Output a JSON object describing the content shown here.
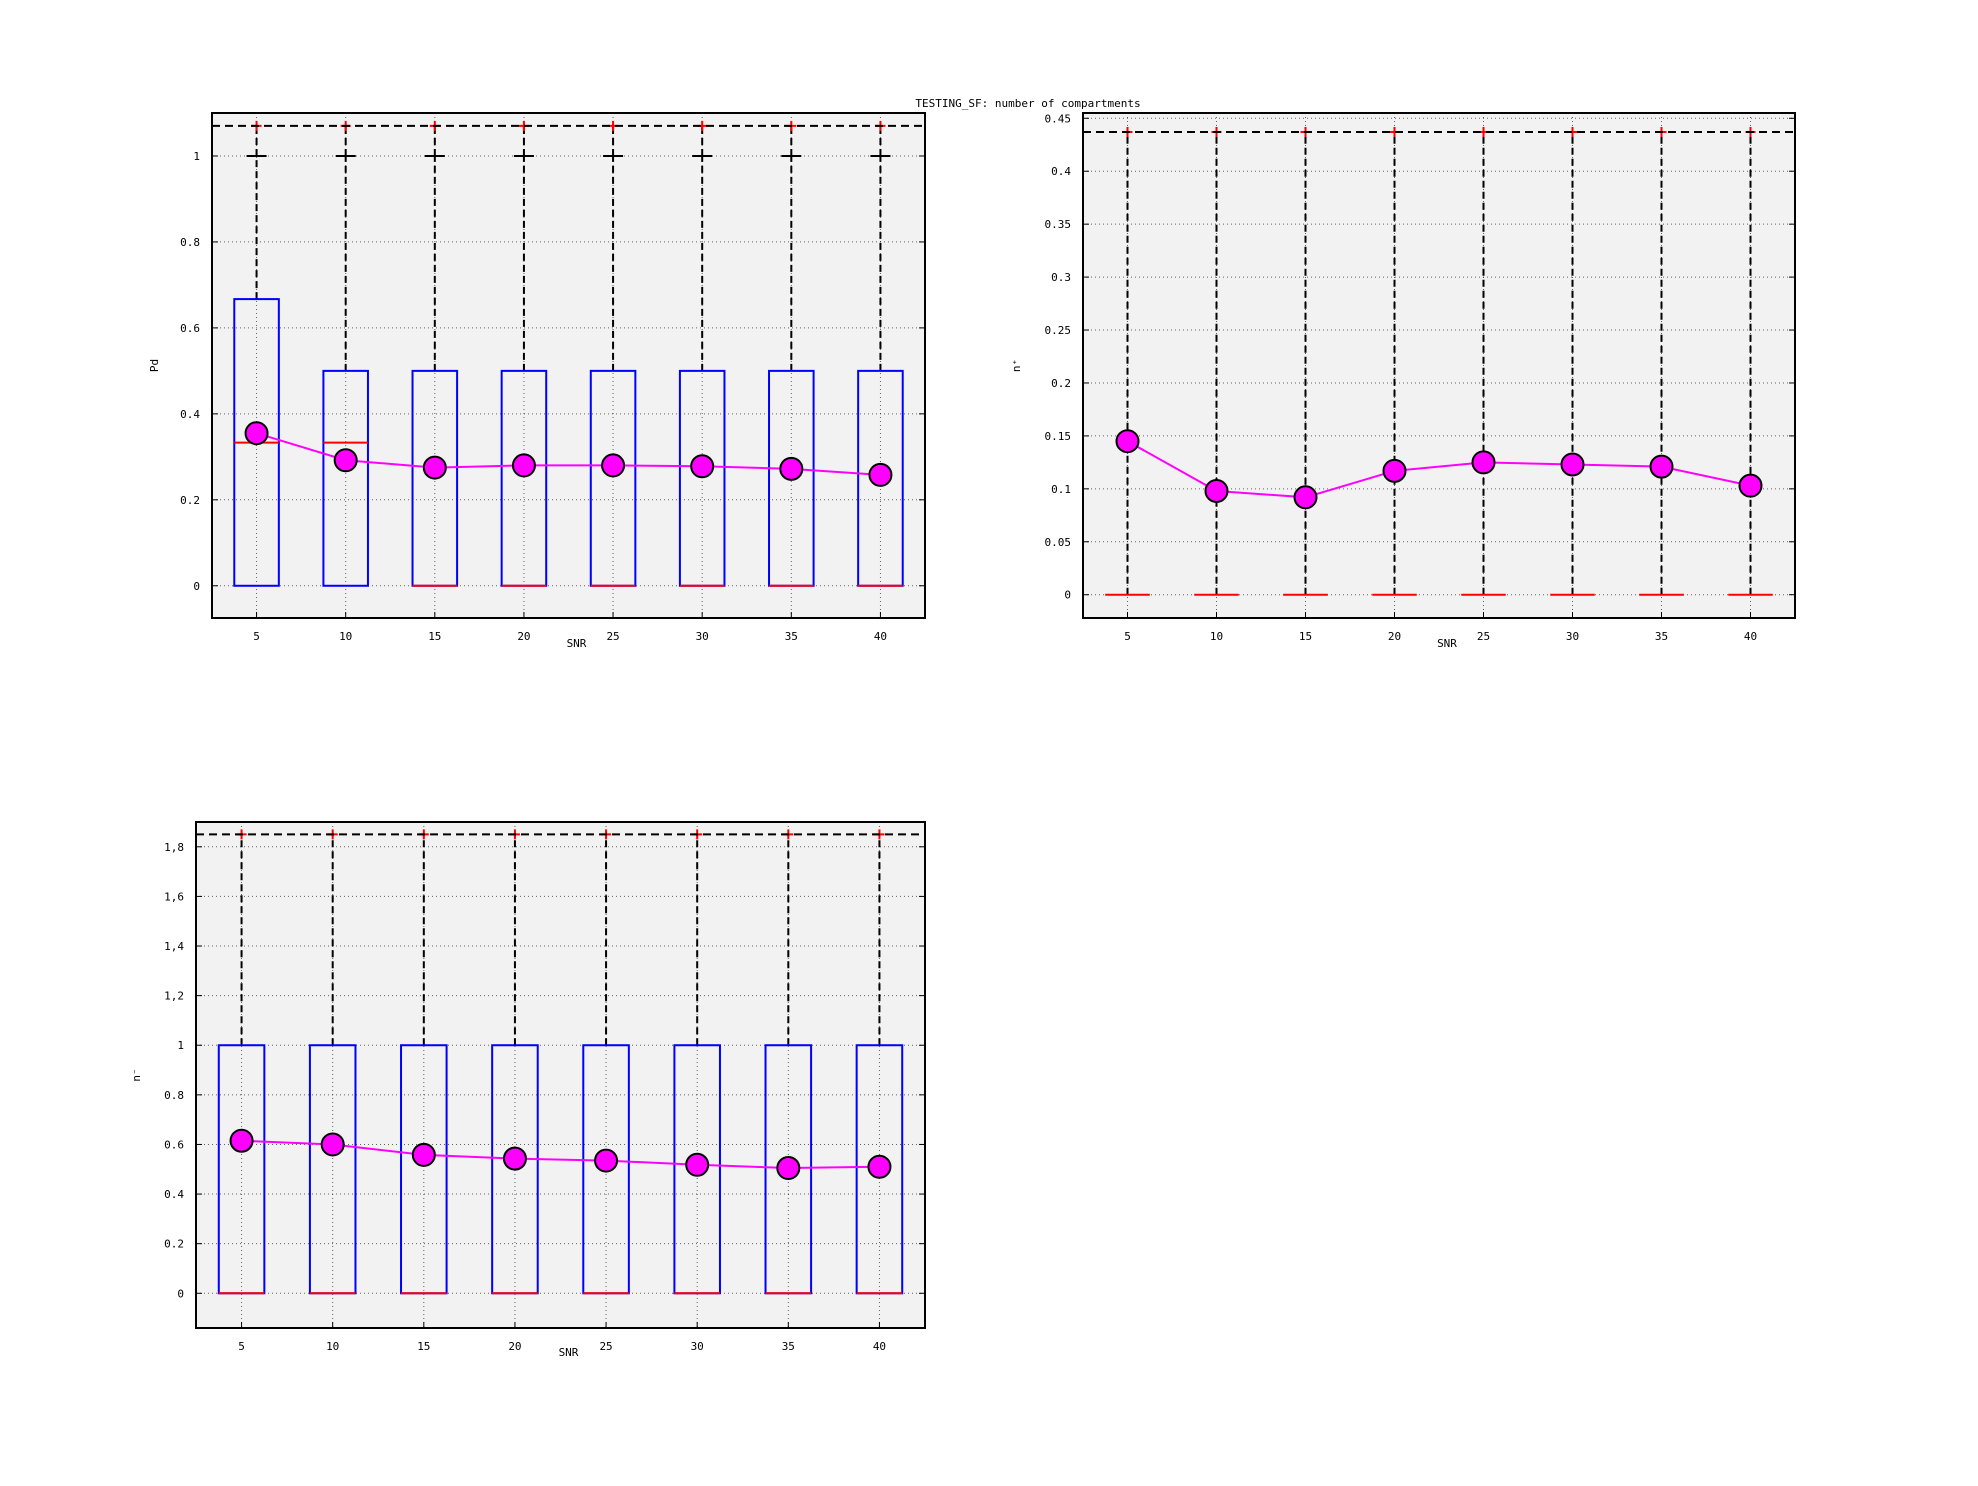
{
  "figure": {
    "title": "TESTING_SF: number of compartments"
  },
  "colors": {
    "background": "#ffffff",
    "plot_bg": "#f2f2f2",
    "box": "#0000ff",
    "median": "#ff0000",
    "outlier": "#ff0000",
    "whisker": "#000000",
    "mean_line": "#ff00ff",
    "mean_marker": "#ff00ff"
  },
  "chart_data": [
    {
      "type": "box",
      "title": "",
      "xlabel": "SNR",
      "ylabel": "Pd",
      "categories": [
        "5",
        "10",
        "15",
        "20",
        "25",
        "30",
        "35",
        "40"
      ],
      "ylim": [
        -0.075,
        1.1
      ],
      "yticks": [
        0,
        0.2,
        0.4,
        0.6,
        0.8,
        1
      ],
      "ytick_labels": [
        "0",
        "0.2",
        "0.4",
        "0.6",
        "0.8",
        "1"
      ],
      "grid": true,
      "boxes": [
        {
          "q1": 0,
          "median": 0.333,
          "q3": 0.667,
          "whisker_low": 0,
          "whisker_high": 1,
          "outlier": 1.07
        },
        {
          "q1": 0,
          "median": 0.333,
          "q3": 0.5,
          "whisker_low": 0,
          "whisker_high": 1,
          "outlier": 1.07
        },
        {
          "q1": 0,
          "median": 0,
          "q3": 0.5,
          "whisker_low": 0,
          "whisker_high": 1,
          "outlier": 1.07
        },
        {
          "q1": 0,
          "median": 0,
          "q3": 0.5,
          "whisker_low": 0,
          "whisker_high": 1,
          "outlier": 1.07
        },
        {
          "q1": 0,
          "median": 0,
          "q3": 0.5,
          "whisker_low": 0,
          "whisker_high": 1,
          "outlier": 1.07
        },
        {
          "q1": 0,
          "median": 0,
          "q3": 0.5,
          "whisker_low": 0,
          "whisker_high": 1,
          "outlier": 1.07
        },
        {
          "q1": 0,
          "median": 0,
          "q3": 0.5,
          "whisker_low": 0,
          "whisker_high": 1,
          "outlier": 1.07
        },
        {
          "q1": 0,
          "median": 0,
          "q3": 0.5,
          "whisker_low": 0,
          "whisker_high": 1,
          "outlier": 1.07
        }
      ],
      "means": [
        0.355,
        0.292,
        0.275,
        0.28,
        0.28,
        0.278,
        0.272,
        0.258
      ]
    },
    {
      "type": "box",
      "title": "",
      "xlabel": "SNR",
      "ylabel": "n⁺",
      "categories": [
        "5",
        "10",
        "15",
        "20",
        "25",
        "30",
        "35",
        "40"
      ],
      "ylim": [
        -0.022,
        0.455
      ],
      "yticks": [
        0,
        0.05,
        0.1,
        0.15,
        0.2,
        0.25,
        0.3,
        0.35,
        0.4,
        0.45
      ],
      "ytick_labels": [
        "0",
        "0.05",
        "0.1",
        "0.15",
        "0.2",
        "0.25",
        "0.3",
        "0.35",
        "0.4",
        "0.45"
      ],
      "grid": true,
      "boxes": [
        {
          "q1": 0,
          "median": 0,
          "q3": 0,
          "whisker_low": 0,
          "whisker_high": 0,
          "outlier": 0.437
        },
        {
          "q1": 0,
          "median": 0,
          "q3": 0,
          "whisker_low": 0,
          "whisker_high": 0,
          "outlier": 0.437
        },
        {
          "q1": 0,
          "median": 0,
          "q3": 0,
          "whisker_low": 0,
          "whisker_high": 0,
          "outlier": 0.437
        },
        {
          "q1": 0,
          "median": 0,
          "q3": 0,
          "whisker_low": 0,
          "whisker_high": 0,
          "outlier": 0.437
        },
        {
          "q1": 0,
          "median": 0,
          "q3": 0,
          "whisker_low": 0,
          "whisker_high": 0,
          "outlier": 0.437
        },
        {
          "q1": 0,
          "median": 0,
          "q3": 0,
          "whisker_low": 0,
          "whisker_high": 0,
          "outlier": 0.437
        },
        {
          "q1": 0,
          "median": 0,
          "q3": 0,
          "whisker_low": 0,
          "whisker_high": 0,
          "outlier": 0.437
        },
        {
          "q1": 0,
          "median": 0,
          "q3": 0,
          "whisker_low": 0,
          "whisker_high": 0,
          "outlier": 0.437
        }
      ],
      "means": [
        0.145,
        0.098,
        0.092,
        0.117,
        0.125,
        0.123,
        0.121,
        0.103
      ]
    },
    {
      "type": "box",
      "title": "",
      "xlabel": "SNR",
      "ylabel": "n⁻",
      "categories": [
        "5",
        "10",
        "15",
        "20",
        "25",
        "30",
        "35",
        "40"
      ],
      "ylim": [
        -0.14,
        1.9
      ],
      "yticks": [
        0,
        0.2,
        0.4,
        0.6,
        0.8,
        1,
        1.2,
        1.4,
        1.6,
        1.8
      ],
      "ytick_labels": [
        "0",
        "0.2",
        "0.4",
        "0.6",
        "0.8",
        "1",
        "1,2",
        "1,4",
        "1,6",
        "1,8"
      ],
      "grid": true,
      "boxes": [
        {
          "q1": 0,
          "median": 0,
          "q3": 1,
          "whisker_low": 0,
          "whisker_high": 1,
          "outlier": 1.85
        },
        {
          "q1": 0,
          "median": 0,
          "q3": 1,
          "whisker_low": 0,
          "whisker_high": 1,
          "outlier": 1.85
        },
        {
          "q1": 0,
          "median": 0,
          "q3": 1,
          "whisker_low": 0,
          "whisker_high": 1,
          "outlier": 1.85
        },
        {
          "q1": 0,
          "median": 0,
          "q3": 1,
          "whisker_low": 0,
          "whisker_high": 1,
          "outlier": 1.85
        },
        {
          "q1": 0,
          "median": 0,
          "q3": 1,
          "whisker_low": 0,
          "whisker_high": 1,
          "outlier": 1.85
        },
        {
          "q1": 0,
          "median": 0,
          "q3": 1,
          "whisker_low": 0,
          "whisker_high": 1,
          "outlier": 1.85
        },
        {
          "q1": 0,
          "median": 0,
          "q3": 1,
          "whisker_low": 0,
          "whisker_high": 1,
          "outlier": 1.85
        },
        {
          "q1": 0,
          "median": 0,
          "q3": 1,
          "whisker_low": 0,
          "whisker_high": 1,
          "outlier": 1.85
        }
      ],
      "means": [
        0.615,
        0.6,
        0.558,
        0.543,
        0.535,
        0.518,
        0.505,
        0.51
      ]
    }
  ]
}
